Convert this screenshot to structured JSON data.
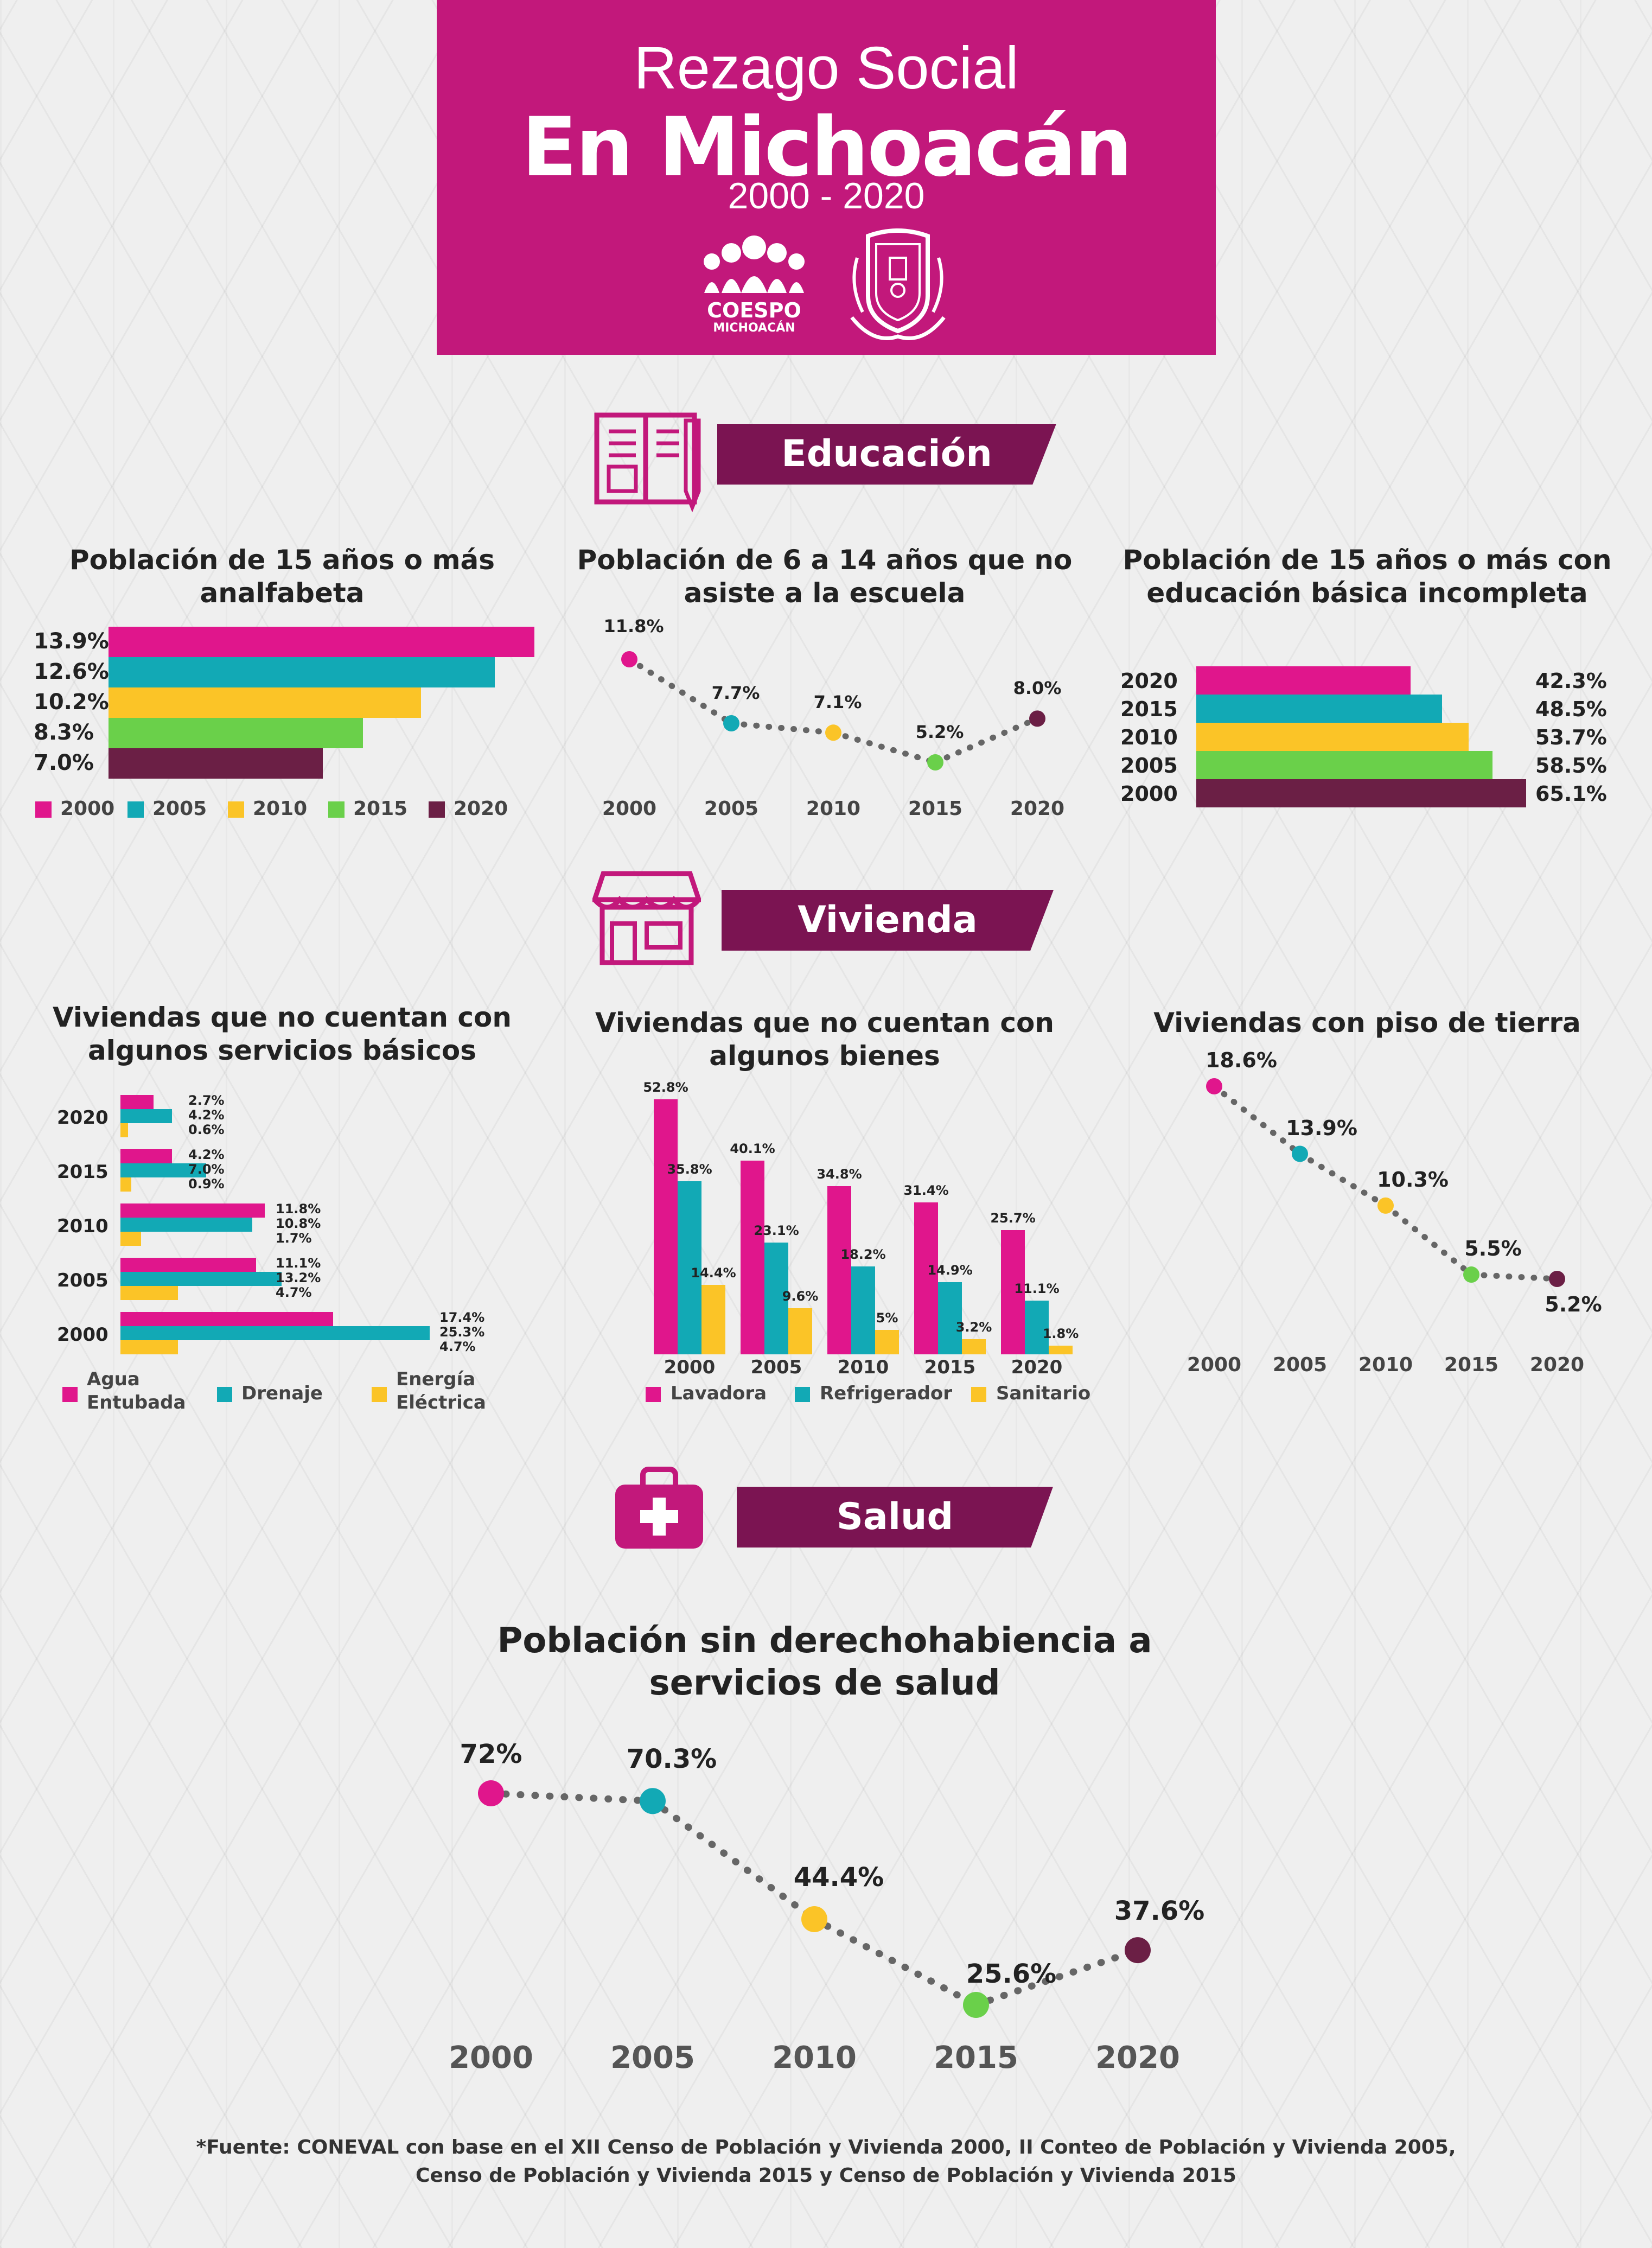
{
  "header": {
    "title": "Rezago Social",
    "subtitle": "En Michoacán",
    "years": "2000 - 2020",
    "logo_text_1": "COESPO",
    "logo_text_2": "MICHOACÁN"
  },
  "colors": {
    "magenta": "#e0168c",
    "teal": "#12a9b5",
    "yellow": "#fbc427",
    "green": "#6ad04a",
    "plum": "#6b1f45",
    "header_bg": "#c2187b",
    "banner_bg": "#7b1452"
  },
  "icons": [
    "book-icon",
    "storefront-icon",
    "first-aid-kit-icon",
    "coespo-logo",
    "state-shield-logo"
  ],
  "sections": {
    "educacion": "Educación",
    "vivienda": "Vivienda",
    "salud": "Salud"
  },
  "chart_data": [
    {
      "id": "analfabeta",
      "type": "bar",
      "orientation": "horizontal",
      "title": "Población  de 15 años o más analfabeta",
      "categories": [
        "2000",
        "2005",
        "2010",
        "2015",
        "2020"
      ],
      "values": [
        13.9,
        12.6,
        10.2,
        8.3,
        7.0
      ],
      "labels": [
        "13.9%",
        "12.6%",
        "10.2%",
        "8.3%",
        "7.0%"
      ],
      "legend": [
        "2000",
        "2005",
        "2010",
        "2015",
        "2020"
      ],
      "legend_position": "bottom"
    },
    {
      "id": "no_asiste",
      "type": "line",
      "title": "Población  de 6 a 14 años que no asiste a la escuela",
      "x": [
        "2000",
        "2005",
        "2010",
        "2015",
        "2020"
      ],
      "values": [
        11.8,
        7.7,
        7.1,
        5.2,
        8.0
      ],
      "labels": [
        "11.8%",
        "7.7%",
        "7.1%",
        "5.2%",
        "8.0%"
      ]
    },
    {
      "id": "basica_incompleta",
      "type": "bar",
      "orientation": "horizontal",
      "title": "Población  de 15 años o más con educación básica incompleta",
      "categories": [
        "2020",
        "2015",
        "2010",
        "2005",
        "2000"
      ],
      "values": [
        42.3,
        48.5,
        53.7,
        58.5,
        65.1
      ],
      "labels": [
        "42.3%",
        "48.5%",
        "53.7%",
        "58.5%",
        "65.1%"
      ]
    },
    {
      "id": "servicios_basicos",
      "type": "bar",
      "orientation": "horizontal",
      "title": "Viviendas que no cuentan con algunos servicios básicos",
      "categories": [
        "2020",
        "2015",
        "2010",
        "2005",
        "2000"
      ],
      "series": [
        {
          "name": "Agua Entubada",
          "legend_line1": "Agua",
          "legend_line2": "Entubada",
          "values": [
            2.7,
            4.2,
            11.8,
            11.1,
            17.4
          ],
          "labels": [
            "2.7%",
            "4.2%",
            "11.8%",
            "11.1%",
            "17.4%"
          ]
        },
        {
          "name": "Drenaje",
          "values": [
            4.2,
            7.0,
            10.8,
            13.2,
            25.3
          ],
          "labels": [
            "4.2%",
            "7.0%",
            "10.8%",
            "13.2%",
            "25.3%"
          ]
        },
        {
          "name": "Energía Eléctrica",
          "legend_line1": "Energía",
          "legend_line2": "Eléctrica",
          "values": [
            0.6,
            0.9,
            1.7,
            4.7,
            4.7
          ],
          "labels": [
            "0.6%",
            "0.9%",
            "1.7%",
            "4.7%",
            "4.7%"
          ]
        }
      ],
      "legend_position": "bottom"
    },
    {
      "id": "bienes",
      "type": "bar",
      "orientation": "vertical",
      "title": "Viviendas que no cuentan con algunos bienes",
      "categories": [
        "2000",
        "2005",
        "2010",
        "2015",
        "2020"
      ],
      "series": [
        {
          "name": "Lavadora",
          "values": [
            52.8,
            40.1,
            34.8,
            31.4,
            25.7
          ],
          "labels": [
            "52.8%",
            "40.1%",
            "34.8%",
            "31.4%",
            "25.7%"
          ]
        },
        {
          "name": "Refrigerador",
          "values": [
            35.8,
            23.1,
            18.2,
            14.9,
            11.1
          ],
          "labels": [
            "35.8%",
            "23.1%",
            "18.2%",
            "14.9%",
            "11.1%"
          ]
        },
        {
          "name": "Sanitario",
          "values": [
            14.4,
            9.6,
            5,
            3.2,
            1.8
          ],
          "labels": [
            "14.4%",
            "9.6%",
            "5%",
            "3.2%",
            "1.8%"
          ]
        }
      ],
      "legend_position": "bottom"
    },
    {
      "id": "piso_tierra",
      "type": "line",
      "title": "Viviendas con piso de tierra",
      "x": [
        "2000",
        "2005",
        "2010",
        "2015",
        "2020"
      ],
      "values": [
        18.6,
        13.9,
        10.3,
        5.5,
        5.2
      ],
      "labels": [
        "18.6%",
        "13.9%",
        "10.3%",
        "5.5%",
        "5.2%"
      ]
    },
    {
      "id": "derechohabiencia",
      "type": "line",
      "title": "Población  sin derechohabiencia a servicios de salud",
      "x": [
        "2000",
        "2005",
        "2010",
        "2015",
        "2020"
      ],
      "values": [
        72,
        70.3,
        44.4,
        25.6,
        37.6
      ],
      "labels": [
        "72%",
        "70.3%",
        "44.4%",
        "25.6%",
        "37.6%"
      ]
    }
  ],
  "source": {
    "line1": "*Fuente: CONEVAL con base en el XII Censo de Población y Vivienda 2000, II Conteo de Población y Vivienda 2005,",
    "line2": "Censo de Población y Vivienda 2015 y Censo de Población y Vivienda 2015"
  }
}
